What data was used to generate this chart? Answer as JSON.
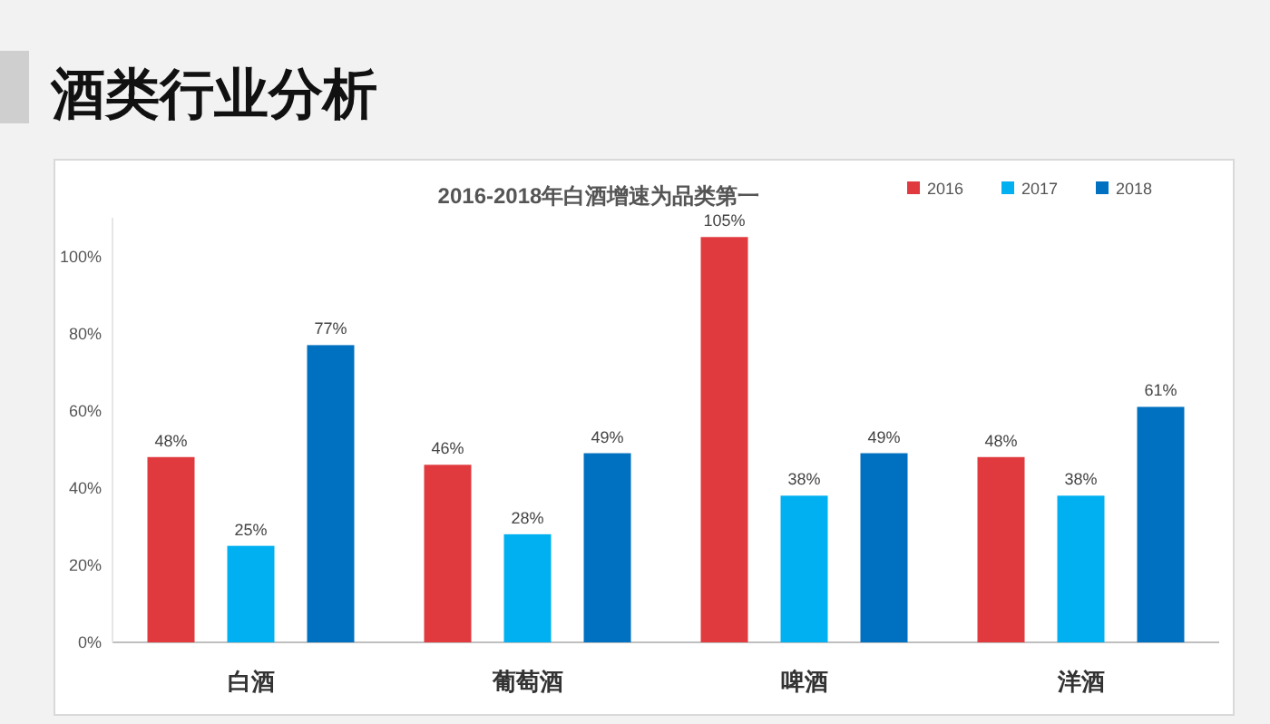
{
  "chart_data": {
    "type": "bar",
    "title": "酒类行业分析",
    "subtitle": "2016-2018年白酒增速为品类第一",
    "categories": [
      "白酒",
      "葡萄酒",
      "啤酒",
      "洋酒"
    ],
    "series": [
      {
        "name": "2016",
        "color": "#e03a3e",
        "values": [
          48,
          46,
          105,
          48
        ],
        "value_labels": [
          "48%",
          "46%",
          "105%",
          "48%"
        ]
      },
      {
        "name": "2017",
        "color": "#00b0f0",
        "values": [
          25,
          28,
          38,
          38
        ],
        "value_labels": [
          "25%",
          "28%",
          "38%",
          "38%"
        ]
      },
      {
        "name": "2018",
        "color": "#0070c0",
        "values": [
          77,
          49,
          49,
          61
        ],
        "value_labels": [
          "77%",
          "49%",
          "49%",
          "61%"
        ]
      }
    ],
    "ylim": [
      0,
      110
    ],
    "yticks": [
      {
        "value": 0,
        "label": "0%"
      },
      {
        "value": 20,
        "label": "20%"
      },
      {
        "value": 40,
        "label": "40%"
      },
      {
        "value": 60,
        "label": "60%"
      },
      {
        "value": 80,
        "label": "80%"
      },
      {
        "value": 100,
        "label": "100%"
      }
    ],
    "legend": "top right",
    "grid": false
  }
}
